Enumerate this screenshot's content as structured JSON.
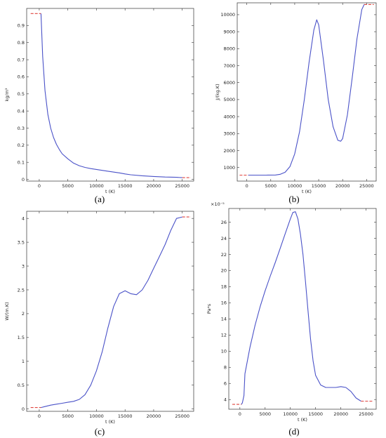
{
  "chart_data": [
    {
      "panel": "(a)",
      "type": "line",
      "xlabel": "t (K)",
      "ylabel": "kg/m³",
      "xlim": [
        -2200,
        27000
      ],
      "ylim": [
        -0.01,
        1.0
      ],
      "xticks": [
        0,
        5000,
        10000,
        15000,
        20000,
        25000
      ],
      "yticks": [
        0,
        0.1,
        0.2,
        0.3,
        0.4,
        0.5,
        0.6,
        0.7,
        0.8,
        0.9
      ],
      "ytick_labels": [
        "0",
        "0.1",
        "0.2",
        "0.3",
        "0.4",
        "0.5",
        "0.6",
        "0.7",
        "0.8",
        "0.9"
      ],
      "grid": false,
      "series": [
        {
          "color": "#4a52c8",
          "x": [
            300,
            600,
            1000,
            1500,
            2000,
            2500,
            3000,
            3500,
            4000,
            5000,
            6000,
            7000,
            8000,
            9000,
            10000,
            12000,
            14000,
            15000,
            16000,
            18000,
            20000,
            22000,
            24000,
            25000
          ],
          "y": [
            0.97,
            0.72,
            0.52,
            0.38,
            0.3,
            0.245,
            0.205,
            0.175,
            0.15,
            0.12,
            0.095,
            0.08,
            0.07,
            0.063,
            0.058,
            0.048,
            0.038,
            0.032,
            0.027,
            0.021,
            0.017,
            0.014,
            0.012,
            0.01
          ]
        }
      ],
      "markers": [
        {
          "color": "#e0443e",
          "x": [
            -1500,
            300
          ],
          "y": [
            0.97,
            0.97
          ]
        },
        {
          "color": "#e0443e",
          "x": [
            25000,
            26500
          ],
          "y": [
            0.01,
            0.01
          ]
        }
      ]
    },
    {
      "panel": "(b)",
      "type": "line",
      "xlabel": "t (K)",
      "ylabel": "J/(kg.K)",
      "xlim": [
        -2000,
        27000
      ],
      "ylim": [
        200,
        10700
      ],
      "xticks": [
        0,
        5000,
        10000,
        15000,
        20000,
        25000
      ],
      "yticks": [
        1000,
        2000,
        3000,
        4000,
        5000,
        6000,
        7000,
        8000,
        9000,
        10000
      ],
      "ytick_labels": [
        "1000",
        "2000",
        "3000",
        "4000",
        "5000",
        "6000",
        "7000",
        "8000",
        "9000",
        "10000"
      ],
      "grid": false,
      "series": [
        {
          "color": "#4a52c8",
          "x": [
            300,
            2000,
            4000,
            6000,
            7000,
            8000,
            9000,
            10000,
            11000,
            12000,
            13000,
            14000,
            14600,
            15000,
            16000,
            17000,
            18000,
            19000,
            19600,
            20000,
            21000,
            22000,
            23000,
            24000,
            24500
          ],
          "y": [
            550,
            550,
            550,
            560,
            600,
            720,
            1050,
            1800,
            3100,
            5000,
            7200,
            9100,
            9700,
            9400,
            7300,
            5000,
            3400,
            2600,
            2550,
            2700,
            4100,
            6300,
            8600,
            10300,
            10600
          ]
        }
      ],
      "markers": [
        {
          "color": "#e0443e",
          "x": [
            -1500,
            300
          ],
          "y": [
            550,
            550
          ]
        },
        {
          "color": "#e0443e",
          "x": [
            24500,
            26500
          ],
          "y": [
            10600,
            10600
          ]
        }
      ]
    },
    {
      "panel": "(c)",
      "type": "line",
      "xlabel": "t (K)",
      "ylabel": "W/(m.K)",
      "xlim": [
        -2200,
        27000
      ],
      "ylim": [
        -0.05,
        4.15
      ],
      "xticks": [
        0,
        5000,
        10000,
        15000,
        20000,
        25000
      ],
      "yticks": [
        0,
        0.5,
        1,
        1.5,
        2,
        2.5,
        3,
        3.5,
        4
      ],
      "ytick_labels": [
        "0",
        "0.5",
        "1",
        "1.5",
        "2",
        "2.5",
        "3",
        "3.5",
        "4"
      ],
      "grid": false,
      "series": [
        {
          "color": "#4a52c8",
          "x": [
            300,
            1000,
            2000,
            3000,
            4000,
            5000,
            6000,
            7000,
            8000,
            9000,
            10000,
            11000,
            12000,
            13000,
            14000,
            15000,
            16000,
            17000,
            18000,
            19000,
            20000,
            21000,
            22000,
            23000,
            24000,
            25000
          ],
          "y": [
            0.03,
            0.05,
            0.08,
            0.1,
            0.12,
            0.14,
            0.16,
            0.2,
            0.3,
            0.5,
            0.8,
            1.2,
            1.7,
            2.15,
            2.42,
            2.48,
            2.42,
            2.4,
            2.5,
            2.7,
            2.95,
            3.2,
            3.45,
            3.75,
            4.0,
            4.03
          ]
        }
      ],
      "markers": [
        {
          "color": "#e0443e",
          "x": [
            -1500,
            300
          ],
          "y": [
            0.03,
            0.03
          ]
        },
        {
          "color": "#e0443e",
          "x": [
            25000,
            26500
          ],
          "y": [
            4.03,
            4.03
          ]
        }
      ]
    },
    {
      "panel": "(d)",
      "type": "line",
      "xlabel": "t (K)",
      "ylabel": "Pa*s",
      "y_exponent_label": "×10⁻⁵",
      "xlim": [
        -2200,
        27000
      ],
      "ylim": [
        2.8,
        27.7
      ],
      "xticks": [
        0,
        5000,
        10000,
        15000,
        20000,
        25000
      ],
      "yticks": [
        4,
        6,
        8,
        10,
        12,
        14,
        16,
        18,
        20,
        22,
        24,
        26
      ],
      "ytick_labels": [
        "4",
        "6",
        "8",
        "10",
        "12",
        "14",
        "16",
        "18",
        "20",
        "22",
        "24",
        "26"
      ],
      "grid": false,
      "series": [
        {
          "color": "#4a52c8",
          "x": [
            300,
            500,
            800,
            1000,
            2000,
            3000,
            4000,
            5000,
            6000,
            7000,
            8000,
            9000,
            10000,
            10500,
            11000,
            11500,
            12000,
            12500,
            13000,
            13500,
            14000,
            14500,
            15000,
            16000,
            17000,
            18000,
            19000,
            20000,
            21000,
            22000,
            23000,
            24000
          ],
          "y": [
            3.4,
            3.6,
            4.5,
            7.2,
            10.5,
            13.2,
            15.5,
            17.5,
            19.3,
            21.0,
            22.8,
            24.6,
            26.4,
            27.2,
            27.3,
            26.4,
            24.5,
            22.0,
            18.6,
            15.0,
            11.5,
            8.8,
            7.0,
            5.8,
            5.5,
            5.5,
            5.5,
            5.6,
            5.5,
            5.0,
            4.2,
            3.8
          ]
        }
      ],
      "markers": [
        {
          "color": "#e0443e",
          "x": [
            -1500,
            300
          ],
          "y": [
            3.4,
            3.4
          ]
        },
        {
          "color": "#e0443e",
          "x": [
            24000,
            26500
          ],
          "y": [
            3.8,
            3.8
          ]
        }
      ]
    }
  ]
}
